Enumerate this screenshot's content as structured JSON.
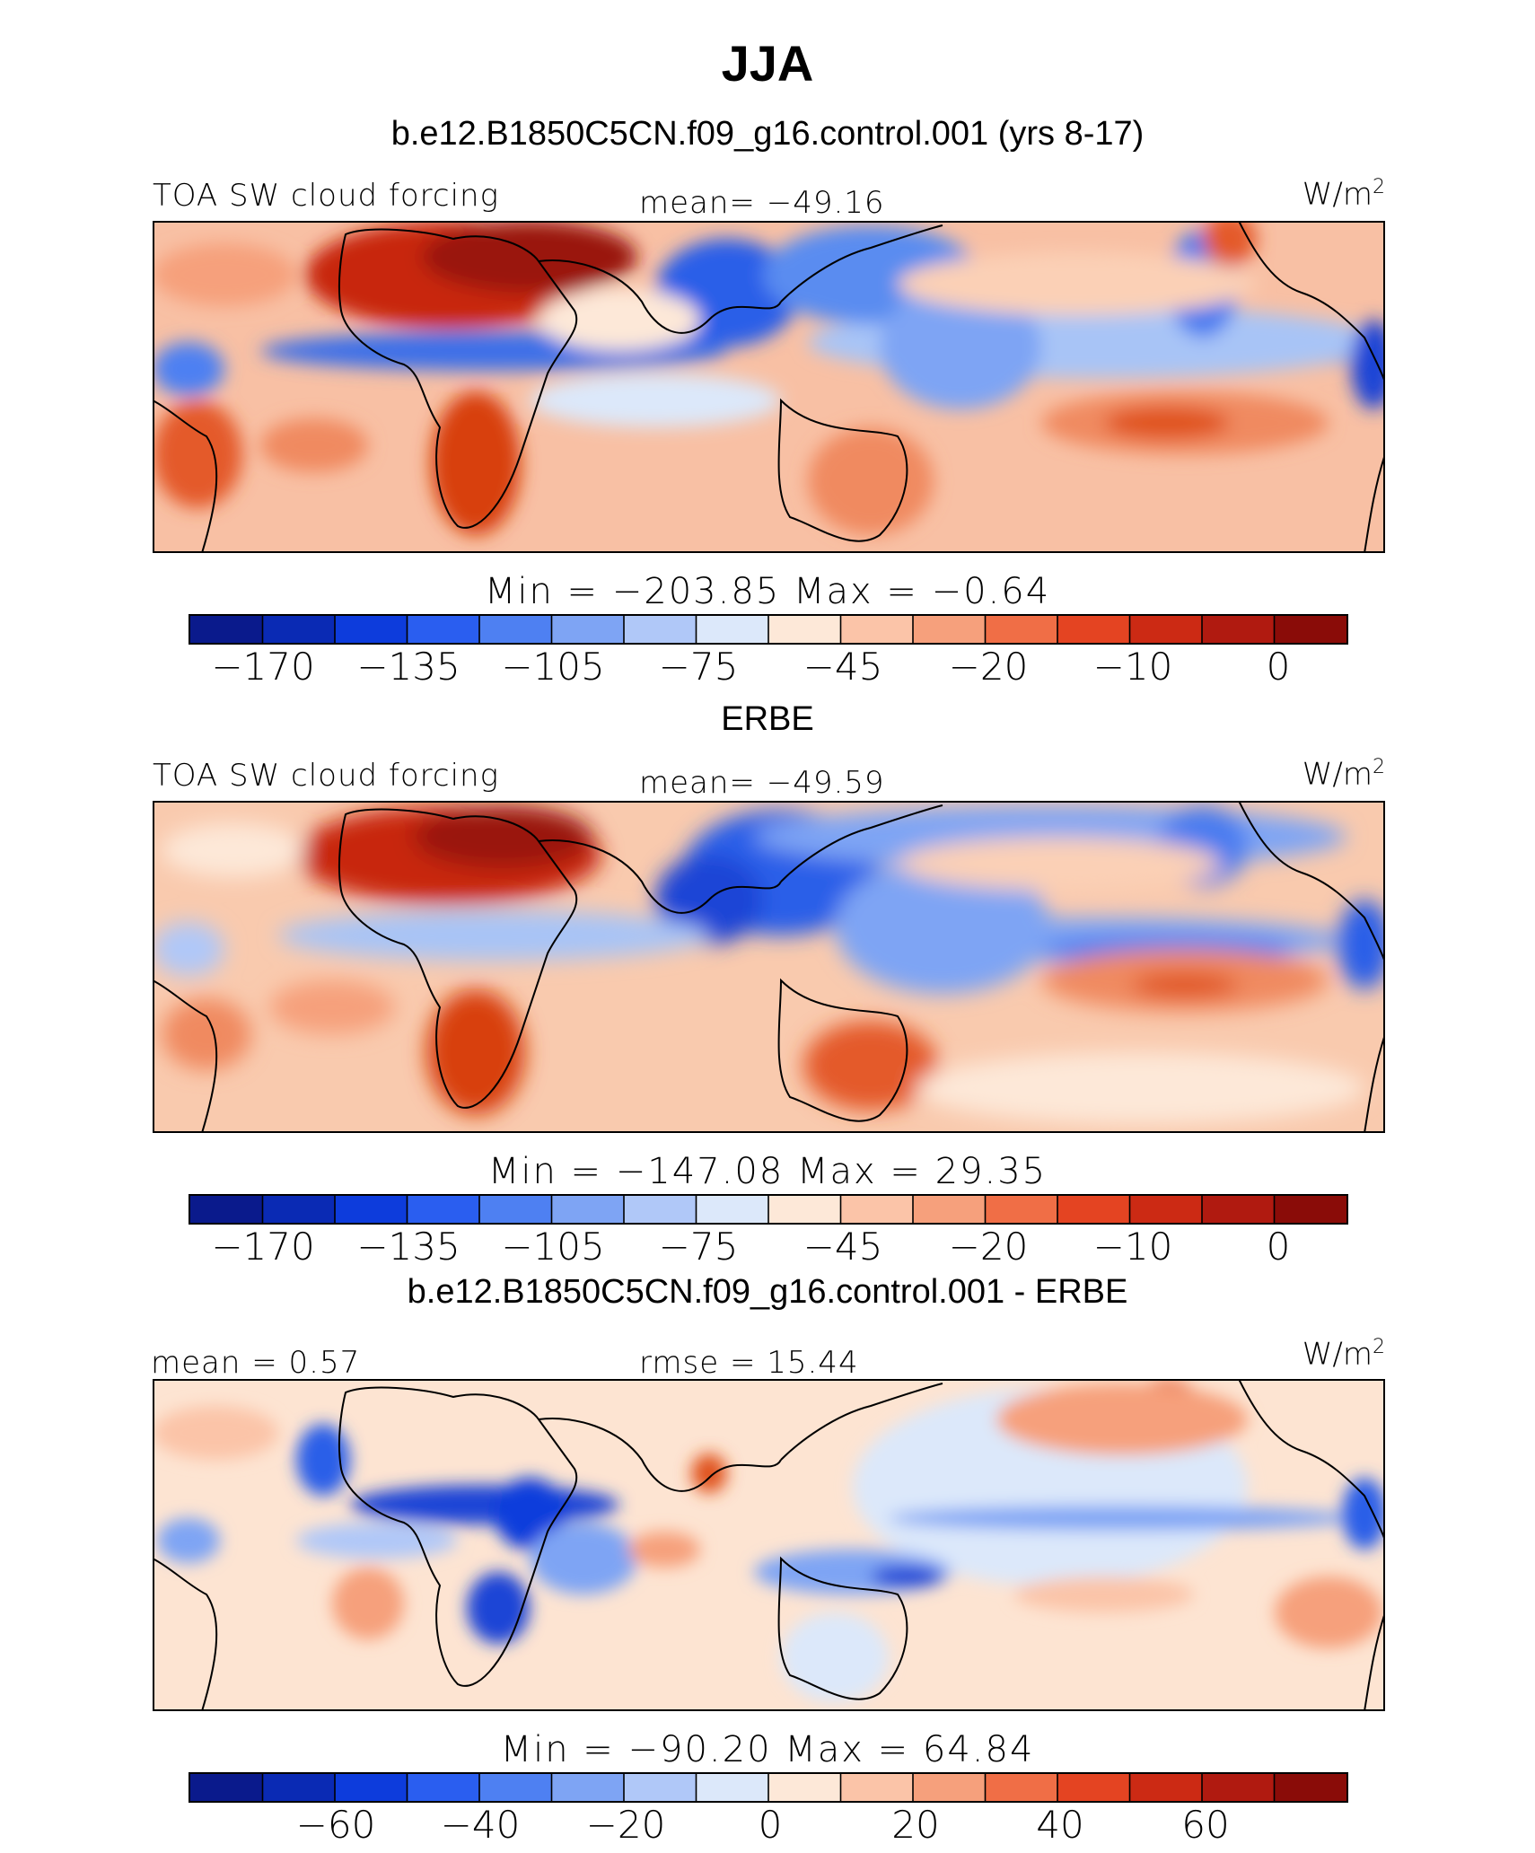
{
  "title": "JJA",
  "panels": [
    {
      "heading": "b.e12.B1850C5CN.f09_g16.control.001 (yrs 8-17)",
      "left_label": "TOA SW cloud forcing",
      "center_label": "mean= −49.16",
      "units": "W/m2",
      "minmax": "Min = −203.85 Max = −0.64",
      "colorbar_ticks": [
        "−170",
        "−135",
        "−105",
        "−75",
        "−45",
        "−20",
        "−10",
        "0"
      ]
    },
    {
      "heading": "ERBE",
      "left_label": "TOA SW cloud forcing",
      "center_label": "mean= −49.59",
      "units": "W/m2",
      "minmax": "Min = −147.08 Max = 29.35",
      "colorbar_ticks": [
        "−170",
        "−135",
        "−105",
        "−75",
        "−45",
        "−20",
        "−10",
        "0"
      ]
    },
    {
      "heading": "b.e12.B1850C5CN.f09_g16.control.001 - ERBE",
      "left_label": "mean = 0.57",
      "center_label": "rmse = 15.44",
      "units": "W/m2",
      "minmax": "Min = −90.20 Max = 64.84",
      "colorbar_ticks": [
        "−60",
        "−40",
        "−20",
        "0",
        "20",
        "40",
        "60"
      ]
    }
  ],
  "colorbar_colors": [
    "#0a1a8c",
    "#0a2ab4",
    "#0d3cdc",
    "#2a5ef0",
    "#4e80f2",
    "#7ea4f4",
    "#b0c8f8",
    "#dce8fa",
    "#fde8d8",
    "#fbc4a8",
    "#f6a07c",
    "#f06e46",
    "#e44422",
    "#cc2a14",
    "#b01a10",
    "#8a0c08"
  ],
  "chart_data": [
    {
      "type": "heatmap",
      "title": "TOA SW cloud forcing",
      "subtitle": "b.e12.B1850C5CN.f09_g16.control.001 (yrs 8-17)",
      "units": "W/m2",
      "mean": -49.16,
      "min": -203.85,
      "max": -0.64,
      "contour_levels": [
        -170,
        -155,
        -135,
        -120,
        -105,
        -90,
        -75,
        -60,
        -45,
        -30,
        -20,
        -15,
        -10,
        -5,
        0
      ],
      "colorbar_labels": [
        -170,
        -135,
        -105,
        -75,
        -45,
        -20,
        -10,
        0
      ]
    },
    {
      "type": "heatmap",
      "title": "TOA SW cloud forcing",
      "subtitle": "ERBE",
      "units": "W/m2",
      "mean": -49.59,
      "min": -147.08,
      "max": 29.35,
      "contour_levels": [
        -170,
        -155,
        -135,
        -120,
        -105,
        -90,
        -75,
        -60,
        -45,
        -30,
        -20,
        -15,
        -10,
        -5,
        0
      ],
      "colorbar_labels": [
        -170,
        -135,
        -105,
        -75,
        -45,
        -20,
        -10,
        0
      ]
    },
    {
      "type": "heatmap",
      "subtitle": "b.e12.B1850C5CN.f09_g16.control.001 - ERBE",
      "units": "W/m2",
      "mean": 0.57,
      "rmse": 15.44,
      "min": -90.2,
      "max": 64.84,
      "contour_levels": [
        -70,
        -60,
        -50,
        -40,
        -30,
        -20,
        -10,
        0,
        10,
        20,
        30,
        40,
        50,
        60,
        70
      ],
      "colorbar_labels": [
        -60,
        -40,
        -20,
        0,
        20,
        40,
        60
      ]
    }
  ]
}
